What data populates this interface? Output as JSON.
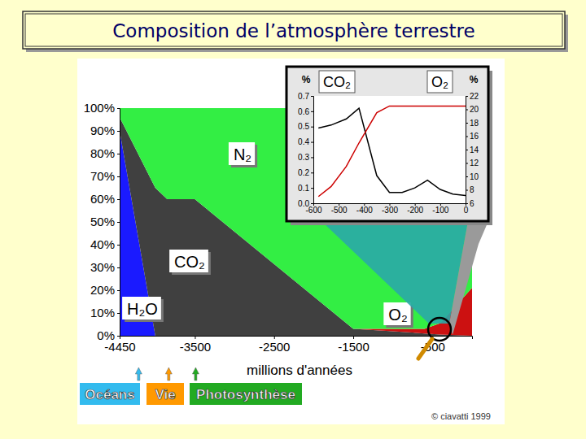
{
  "chart_data": [
    {
      "type": "area",
      "title": "Composition de l’atmosphère terrestre",
      "stacked": true,
      "x": [
        -4450,
        -4000,
        -3850,
        -3500,
        -1500,
        -1000,
        -600,
        -400,
        0
      ],
      "series": [
        {
          "name": "H₂O",
          "color": "#1a1aff",
          "values": [
            90,
            0,
            0,
            0,
            0,
            0,
            0,
            0,
            0
          ]
        },
        {
          "name": "CO₂",
          "color": "#404040",
          "values": [
            6,
            65,
            60,
            60,
            3,
            2,
            1,
            0.5,
            0.04
          ]
        },
        {
          "name": "O₂",
          "color": "#cc1111",
          "values": [
            0,
            0,
            0,
            0,
            0,
            1,
            2,
            5,
            21
          ]
        },
        {
          "name": "N₂",
          "color": "#33ee44",
          "values": [
            4,
            35,
            40,
            40,
            97,
            97,
            97,
            94.5,
            78.96
          ]
        }
      ],
      "xlim": [
        -4450,
        0
      ],
      "xticks": [
        -4450,
        -3500,
        -2500,
        -1500,
        -500
      ],
      "ylim": [
        0,
        100
      ],
      "yticks": [
        {
          "value": 0,
          "label": "0%"
        },
        {
          "value": 10,
          "label": "10%"
        },
        {
          "value": 20,
          "label": "20%"
        },
        {
          "value": 30,
          "label": "30%"
        },
        {
          "value": 40,
          "label": "40%"
        },
        {
          "value": 50,
          "label": "50%"
        },
        {
          "value": 60,
          "label": "60%"
        },
        {
          "value": 70,
          "label": "70%"
        },
        {
          "value": 80,
          "label": "80%"
        },
        {
          "value": 90,
          "label": "90%"
        },
        {
          "value": 100,
          "label": "100%"
        }
      ],
      "x_label": "millions d'années",
      "annotations": [
        {
          "label": "Océans",
          "x": -4210
        },
        {
          "label": "Vie",
          "x": -3830
        },
        {
          "label": "Photosynthèse",
          "x": -3490
        }
      ]
    },
    {
      "type": "line",
      "x": [
        -580,
        -530,
        -470,
        -420,
        -350,
        -300,
        -250,
        -200,
        -150,
        -100,
        -50,
        0
      ],
      "series": [
        {
          "name": "CO₂",
          "color": "#000000",
          "values": [
            0.49,
            0.51,
            0.55,
            0.62,
            0.18,
            0.07,
            0.07,
            0.1,
            0.15,
            0.09,
            0.06,
            0.05
          ]
        },
        {
          "name": "O₂",
          "color": "#cc0000",
          "axis": "y2",
          "values": [
            7,
            8.5,
            11.5,
            15,
            19.5,
            20.5,
            20.5,
            20.5,
            20.5,
            20.5,
            20.5,
            20.5
          ]
        }
      ],
      "xlim": [
        -600,
        0
      ],
      "xticks": [
        -600,
        -500,
        -400,
        -300,
        -200,
        -100,
        0
      ],
      "ylim": [
        0,
        0.7
      ],
      "yticks": [
        {
          "value": 0,
          "label": "0.0"
        },
        0.1,
        0.2,
        0.3,
        0.4,
        0.5,
        0.6,
        0.7
      ],
      "y2lim": [
        6,
        22
      ],
      "y2ticks": [
        6,
        8,
        10,
        12,
        14,
        16,
        18,
        20,
        22
      ],
      "y_label": "%",
      "y2_label": "%"
    }
  ],
  "credit": "© ciavatti 1999"
}
